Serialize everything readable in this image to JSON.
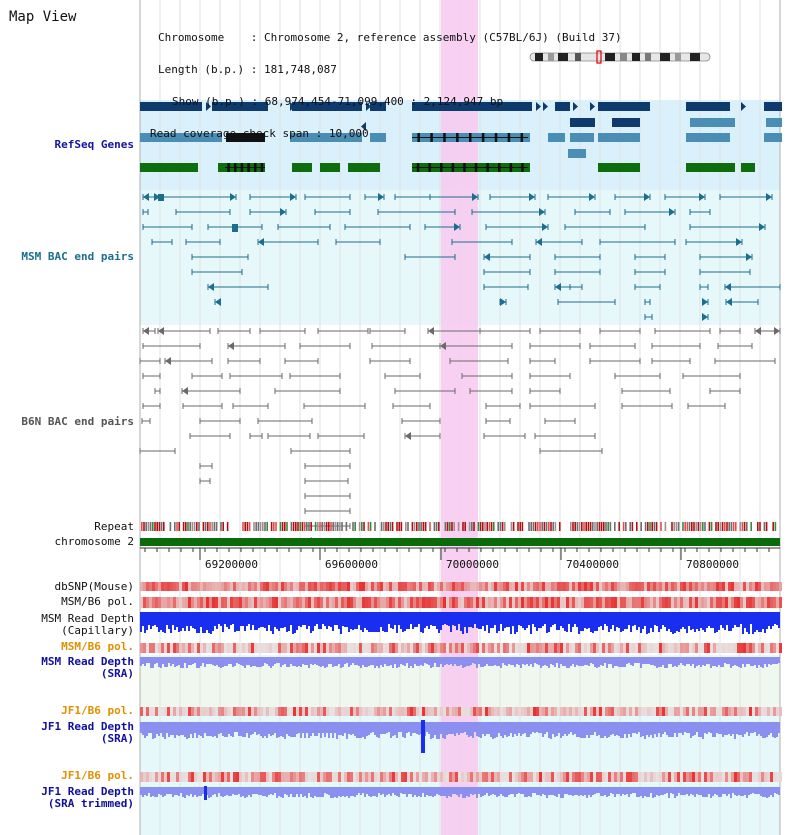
{
  "window": {
    "title": "Map View"
  },
  "info": {
    "chromosome_label": "Chromosome",
    "chromosome_value": "Chromosome 2, reference assembly (C57BL/6J) (Build 37)",
    "length_label": "Length (b.p.)",
    "length_value": "181,748,087",
    "show_label": "Show (b.p.)",
    "show_value": "68,974,454-71,099,400 : 2,124,947 bp",
    "coverage_label": "Read coverage check span",
    "coverage_value": "10,000"
  },
  "tracks": {
    "refseq": "RefSeq Genes",
    "msm_bac": "MSM BAC end pairs",
    "b6n_bac": "B6N BAC end pairs",
    "repeat": "Repeat",
    "chromosome": "chromosome 2",
    "dbsnp": "dbSNP(Mouse)",
    "msm_b6_pol": "MSM/B6 pol.",
    "msm_depth_cap_1": "MSM Read Depth",
    "msm_depth_cap_2": "(Capillary)",
    "msm_b6_pol_sra": "MSM/B6 pol.",
    "msm_depth_sra_1": "MSM Read Depth",
    "msm_depth_sra_2": "(SRA)",
    "jf1_b6_pol": "JF1/B6 pol.",
    "jf1_depth_1": "JF1 Read Depth",
    "jf1_depth_2": "(SRA)",
    "jf1_b6_pol_trim": "JF1/B6 pol.",
    "jf1_depth_trim_1": "JF1 Read Depth",
    "jf1_depth_trim_2": "(SRA trimmed)"
  },
  "axis": {
    "ticks": [
      "69200000",
      "69600000",
      "70000000",
      "70400000",
      "70800000"
    ]
  },
  "highlight": {
    "start": "69,950,000",
    "end": "70,075,000"
  },
  "colors": {
    "refseq_dark": "#0e3a6e",
    "refseq_mid": "#4b8eb5",
    "refseq_green": "#0e6e0e",
    "msm_bac": "#1c6e8e",
    "b6n_bac": "#6a6a6a",
    "chromosome_bar": "#0b6b0b",
    "highlight": "#f7cbf0",
    "snp": "#e83030",
    "depth_dark": "#1a2ef0",
    "depth_light": "#8a8ff0",
    "pol_label": "#e09000",
    "depth_label": "#1010a0"
  }
}
